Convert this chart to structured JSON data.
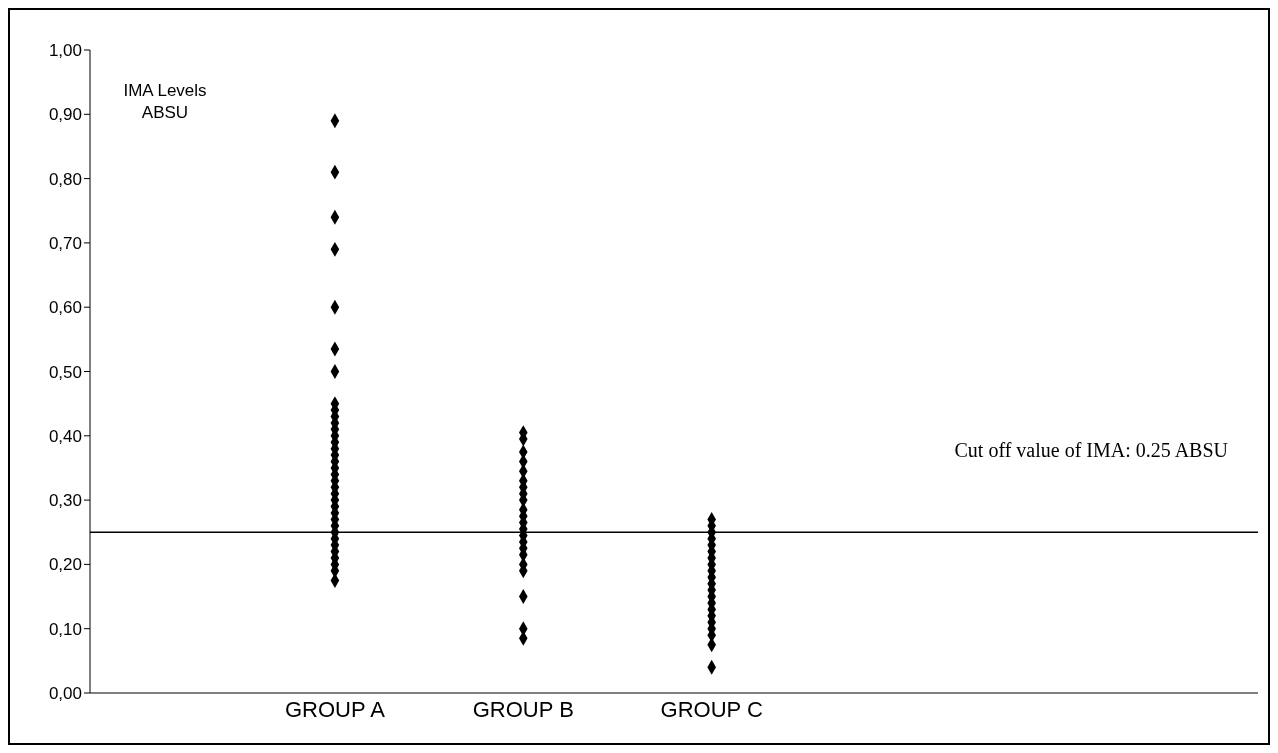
{
  "chart_data": {
    "type": "scatter",
    "ylabel": "IMA Levels ABSU",
    "categories": [
      "GROUP A",
      "GROUP B",
      "GROUP C"
    ],
    "series": [
      {
        "color": "#000000",
        "x": [
          "GROUP A",
          "GROUP A",
          "GROUP A",
          "GROUP A",
          "GROUP A",
          "GROUP A",
          "GROUP A",
          "GROUP A",
          "GROUP A",
          "GROUP A",
          "GROUP A",
          "GROUP A",
          "GROUP A",
          "GROUP A",
          "GROUP A",
          "GROUP A",
          "GROUP A",
          "GROUP A",
          "GROUP A",
          "GROUP A",
          "GROUP A",
          "GROUP A",
          "GROUP A",
          "GROUP A",
          "GROUP A",
          "GROUP A",
          "GROUP A",
          "GROUP A",
          "GROUP A",
          "GROUP A",
          "GROUP A",
          "GROUP A",
          "GROUP A",
          "GROUP A",
          "GROUP A"
        ],
        "values": [
          0.89,
          0.81,
          0.74,
          0.69,
          0.6,
          0.535,
          0.5,
          0.45,
          0.44,
          0.43,
          0.42,
          0.41,
          0.4,
          0.39,
          0.38,
          0.37,
          0.36,
          0.35,
          0.34,
          0.33,
          0.32,
          0.31,
          0.3,
          0.29,
          0.28,
          0.27,
          0.26,
          0.25,
          0.24,
          0.23,
          0.22,
          0.21,
          0.2,
          0.19,
          0.175
        ]
      },
      {
        "color": "#000000",
        "x": [
          "GROUP B",
          "GROUP B",
          "GROUP B",
          "GROUP B",
          "GROUP B",
          "GROUP B",
          "GROUP B",
          "GROUP B",
          "GROUP B",
          "GROUP B",
          "GROUP B",
          "GROUP B",
          "GROUP B",
          "GROUP B",
          "GROUP B",
          "GROUP B",
          "GROUP B",
          "GROUP B",
          "GROUP B",
          "GROUP B",
          "GROUP B",
          "GROUP B"
        ],
        "values": [
          0.405,
          0.395,
          0.375,
          0.36,
          0.345,
          0.33,
          0.32,
          0.31,
          0.3,
          0.285,
          0.275,
          0.265,
          0.255,
          0.245,
          0.235,
          0.225,
          0.215,
          0.2,
          0.19,
          0.15,
          0.1,
          0.085
        ]
      },
      {
        "color": "#000000",
        "x": [
          "GROUP C",
          "GROUP C",
          "GROUP C",
          "GROUP C",
          "GROUP C",
          "GROUP C",
          "GROUP C",
          "GROUP C",
          "GROUP C",
          "GROUP C",
          "GROUP C",
          "GROUP C",
          "GROUP C",
          "GROUP C",
          "GROUP C",
          "GROUP C",
          "GROUP C",
          "GROUP C",
          "GROUP C",
          "GROUP C",
          "GROUP C"
        ],
        "values": [
          0.27,
          0.26,
          0.25,
          0.24,
          0.23,
          0.22,
          0.21,
          0.2,
          0.19,
          0.18,
          0.17,
          0.16,
          0.15,
          0.14,
          0.13,
          0.12,
          0.11,
          0.1,
          0.09,
          0.075,
          0.04
        ]
      }
    ],
    "ylim": [
      0,
      1
    ],
    "yticks": [
      {
        "value": 0,
        "label": "0,00"
      },
      {
        "value": 0.1,
        "label": "0,10"
      },
      {
        "value": 0.2,
        "label": "0,20"
      },
      {
        "value": 0.3,
        "label": "0,30"
      },
      {
        "value": 0.4,
        "label": "0,40"
      },
      {
        "value": 0.5,
        "label": "0,50"
      },
      {
        "value": 0.6,
        "label": "0,60"
      },
      {
        "value": 0.7,
        "label": "0,70"
      },
      {
        "value": 0.8,
        "label": "0,80"
      },
      {
        "value": 0.9,
        "label": "0,90"
      },
      {
        "value": 1,
        "label": "1,00"
      }
    ],
    "ref_lines": [
      {
        "axis": "y",
        "value": 0.25,
        "label": "Cut off value of IMA: 0.25 ABSU",
        "color": "#000000"
      }
    ],
    "marker": "diamond",
    "grid": false
  }
}
